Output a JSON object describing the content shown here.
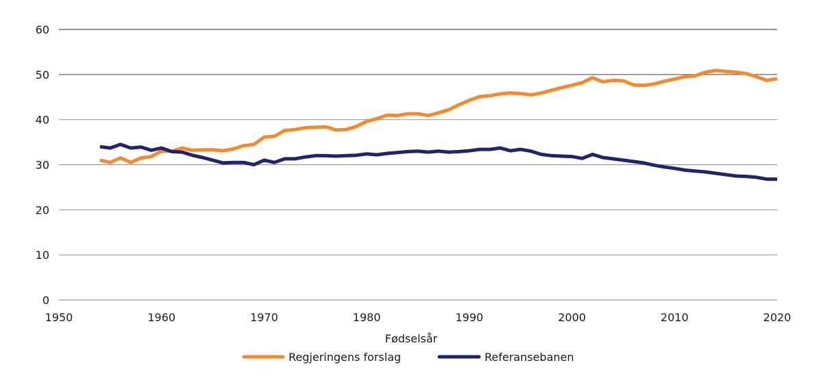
{
  "chart_data": {
    "type": "line",
    "title": "",
    "xlabel": "Fødselsår",
    "ylabel": "",
    "xlim": [
      1950,
      2020
    ],
    "ylim": [
      0,
      60
    ],
    "x_ticks": [
      "1950",
      "1960",
      "1970",
      "1980",
      "1990",
      "2000",
      "2010",
      "2020"
    ],
    "y_ticks": [
      "0",
      "10",
      "20",
      "30",
      "40",
      "50",
      "60"
    ],
    "grid": true,
    "legend_position": "bottom-center",
    "x": [
      1954,
      1955,
      1956,
      1957,
      1958,
      1959,
      1960,
      1961,
      1962,
      1963,
      1964,
      1965,
      1966,
      1967,
      1968,
      1969,
      1970,
      1971,
      1972,
      1973,
      1974,
      1975,
      1976,
      1977,
      1978,
      1979,
      1980,
      1981,
      1982,
      1983,
      1984,
      1985,
      1986,
      1987,
      1988,
      1989,
      1990,
      1991,
      1992,
      1993,
      1994,
      1995,
      1996,
      1997,
      1998,
      1999,
      2000,
      2001,
      2002,
      2003,
      2004,
      2005,
      2006,
      2007,
      2008,
      2009,
      2010,
      2011,
      2012,
      2013,
      2014,
      2015,
      2016,
      2017,
      2018,
      2019,
      2020
    ],
    "series": [
      {
        "name": "Regjeringens forslag",
        "color": "#F58A2C",
        "values": [
          31.0,
          30.5,
          31.5,
          30.5,
          31.5,
          31.8,
          33.0,
          33.0,
          33.7,
          33.2,
          33.3,
          33.3,
          33.1,
          33.5,
          34.2,
          34.5,
          36.1,
          36.3,
          37.6,
          37.8,
          38.2,
          38.3,
          38.4,
          37.7,
          37.8,
          38.5,
          39.6,
          40.2,
          41.0,
          40.9,
          41.3,
          41.3,
          40.9,
          41.5,
          42.2,
          43.3,
          44.3,
          45.1,
          45.3,
          45.7,
          45.9,
          45.8,
          45.5,
          45.9,
          46.5,
          47.1,
          47.6,
          48.2,
          49.3,
          48.4,
          48.7,
          48.6,
          47.7,
          47.6,
          47.9,
          48.5,
          49.0,
          49.5,
          49.7,
          50.5,
          50.9,
          50.7,
          50.5,
          50.2,
          49.5,
          48.7,
          49.1
        ]
      },
      {
        "name": "Referansebanen",
        "color": "#22226E",
        "values": [
          34.0,
          33.7,
          34.5,
          33.7,
          33.9,
          33.2,
          33.7,
          32.9,
          32.8,
          32.1,
          31.6,
          31.0,
          30.4,
          30.5,
          30.5,
          30.0,
          31.0,
          30.5,
          31.3,
          31.3,
          31.7,
          32.0,
          32.0,
          31.9,
          32.0,
          32.1,
          32.4,
          32.2,
          32.5,
          32.7,
          32.9,
          33.0,
          32.8,
          33.0,
          32.8,
          32.9,
          33.1,
          33.4,
          33.4,
          33.7,
          33.1,
          33.4,
          33.0,
          32.3,
          32.0,
          31.9,
          31.8,
          31.4,
          32.3,
          31.6,
          31.3,
          31.0,
          30.7,
          30.4,
          29.9,
          29.5,
          29.2,
          28.8,
          28.6,
          28.4,
          28.1,
          27.8,
          27.5,
          27.4,
          27.2,
          26.8,
          26.8
        ]
      }
    ]
  }
}
